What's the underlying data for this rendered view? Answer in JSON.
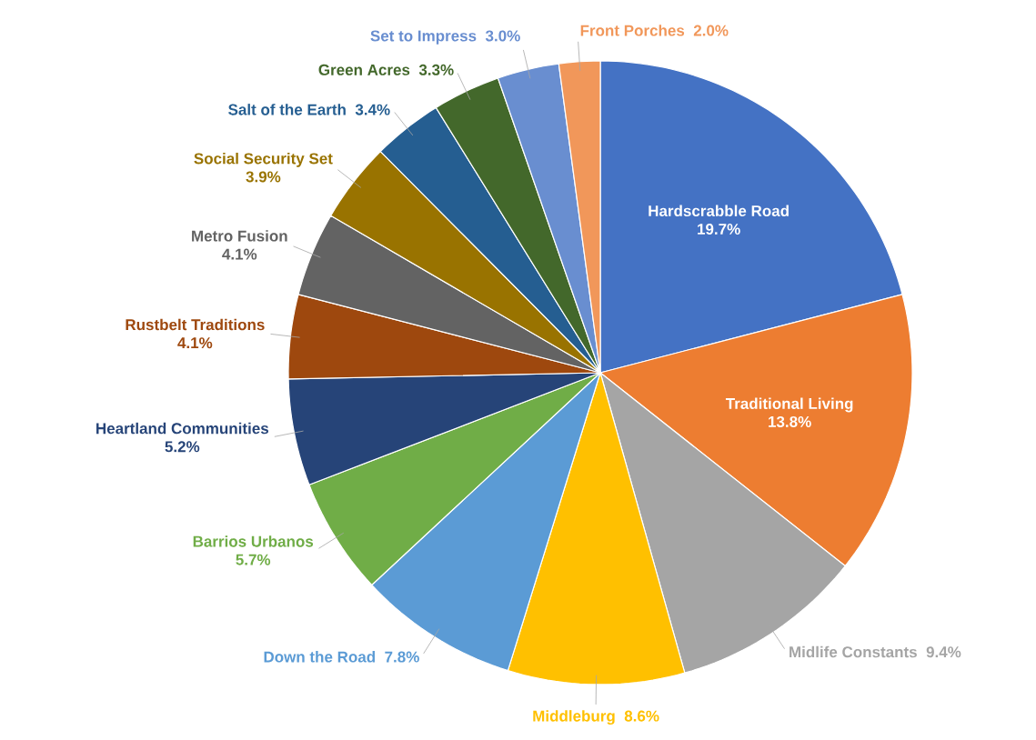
{
  "chart_data": {
    "type": "pie",
    "categories": [
      "Hardscrabble Road",
      "Traditional Living",
      "Midlife Constants",
      "Middleburg",
      "Down the Road",
      "Barrios Urbanos",
      "Heartland Communities",
      "Rustbelt Traditions",
      "Metro Fusion",
      "Social Security Set",
      "Salt of the Earth",
      "Green Acres",
      "Set to Impress",
      "Front Porches"
    ],
    "values": [
      19.7,
      13.8,
      9.4,
      8.6,
      7.8,
      5.7,
      5.2,
      4.1,
      4.1,
      3.9,
      3.4,
      3.3,
      3.0,
      2.0
    ],
    "value_labels": [
      "19.7%",
      "13.8%",
      "9.4%",
      "8.6%",
      "7.8%",
      "5.7%",
      "5.2%",
      "4.1%",
      "4.1%",
      "3.9%",
      "3.4%",
      "3.3%",
      "3.0%",
      "2.0%"
    ],
    "colors": [
      "#4472c4",
      "#ed7d31",
      "#a5a5a5",
      "#ffc000",
      "#5b9bd5",
      "#70ad47",
      "#264478",
      "#9e480e",
      "#636363",
      "#997300",
      "#255e91",
      "#43682b",
      "#698ed0",
      "#f1975a"
    ]
  }
}
